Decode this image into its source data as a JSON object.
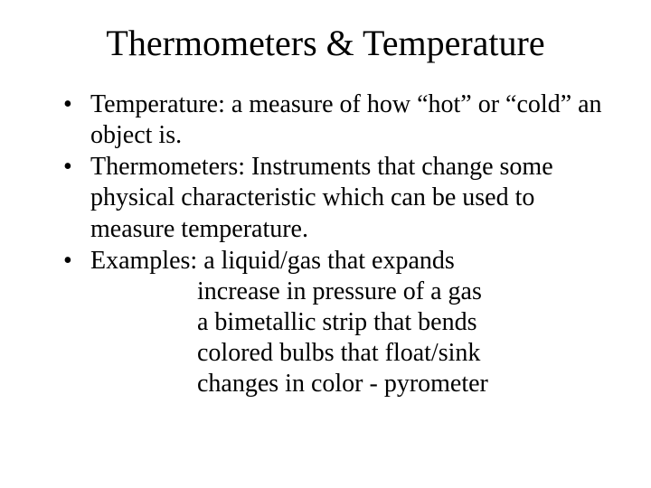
{
  "slide": {
    "title": "Thermometers & Temperature",
    "bullets": [
      {
        "text": "Temperature: a measure of how “hot” or “cold” an object is."
      },
      {
        "text": "Thermometers: Instruments that change some physical characteristic which can be used to measure temperature."
      },
      {
        "text": "Examples: a liquid/gas that expands",
        "sublines": [
          "increase in pressure of a gas",
          "a bimetallic strip that bends",
          "colored bulbs that float/sink",
          "changes in color - pyrometer"
        ]
      }
    ]
  },
  "colors": {
    "background": "#ffffff",
    "text": "#000000"
  },
  "typography": {
    "family": "Times New Roman",
    "title_fontsize": 40,
    "body_fontsize": 28
  }
}
